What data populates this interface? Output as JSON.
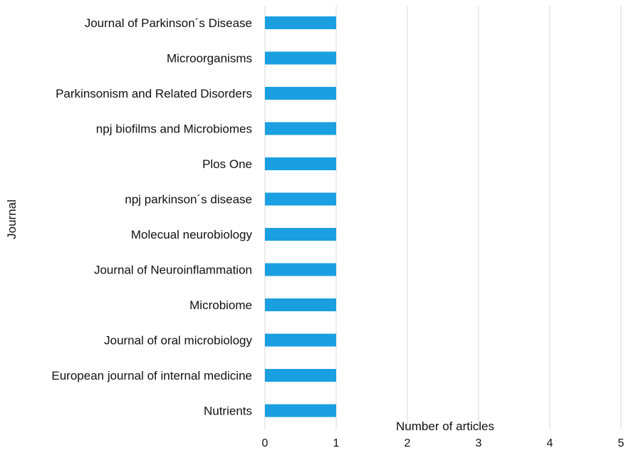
{
  "chart_data": {
    "type": "bar",
    "orientation": "horizontal",
    "categories": [
      "Journal of Parkinson´s Disease",
      "Microorganisms",
      "Parkinsonism and Related Disorders",
      "npj biofilms and Microbiomes",
      "Plos One",
      "npj parkinson´s disease",
      "Molecual neurobiology",
      "Journal of Neuroinflammation",
      "Microbiome",
      "Journal of oral microbiology",
      "European journal of internal medicine",
      "Nutrients"
    ],
    "values": [
      1,
      1,
      1,
      1,
      1,
      1,
      1,
      1,
      1,
      1,
      1,
      1
    ],
    "xlabel": "Number of articles",
    "ylabel": "Journal",
    "xlim": [
      0,
      5
    ],
    "xticks": [
      0,
      1,
      2,
      3,
      4,
      5
    ],
    "grid": "vertical",
    "bar_color": "#1a9fe0",
    "grid_color": "#d9d9d9"
  }
}
